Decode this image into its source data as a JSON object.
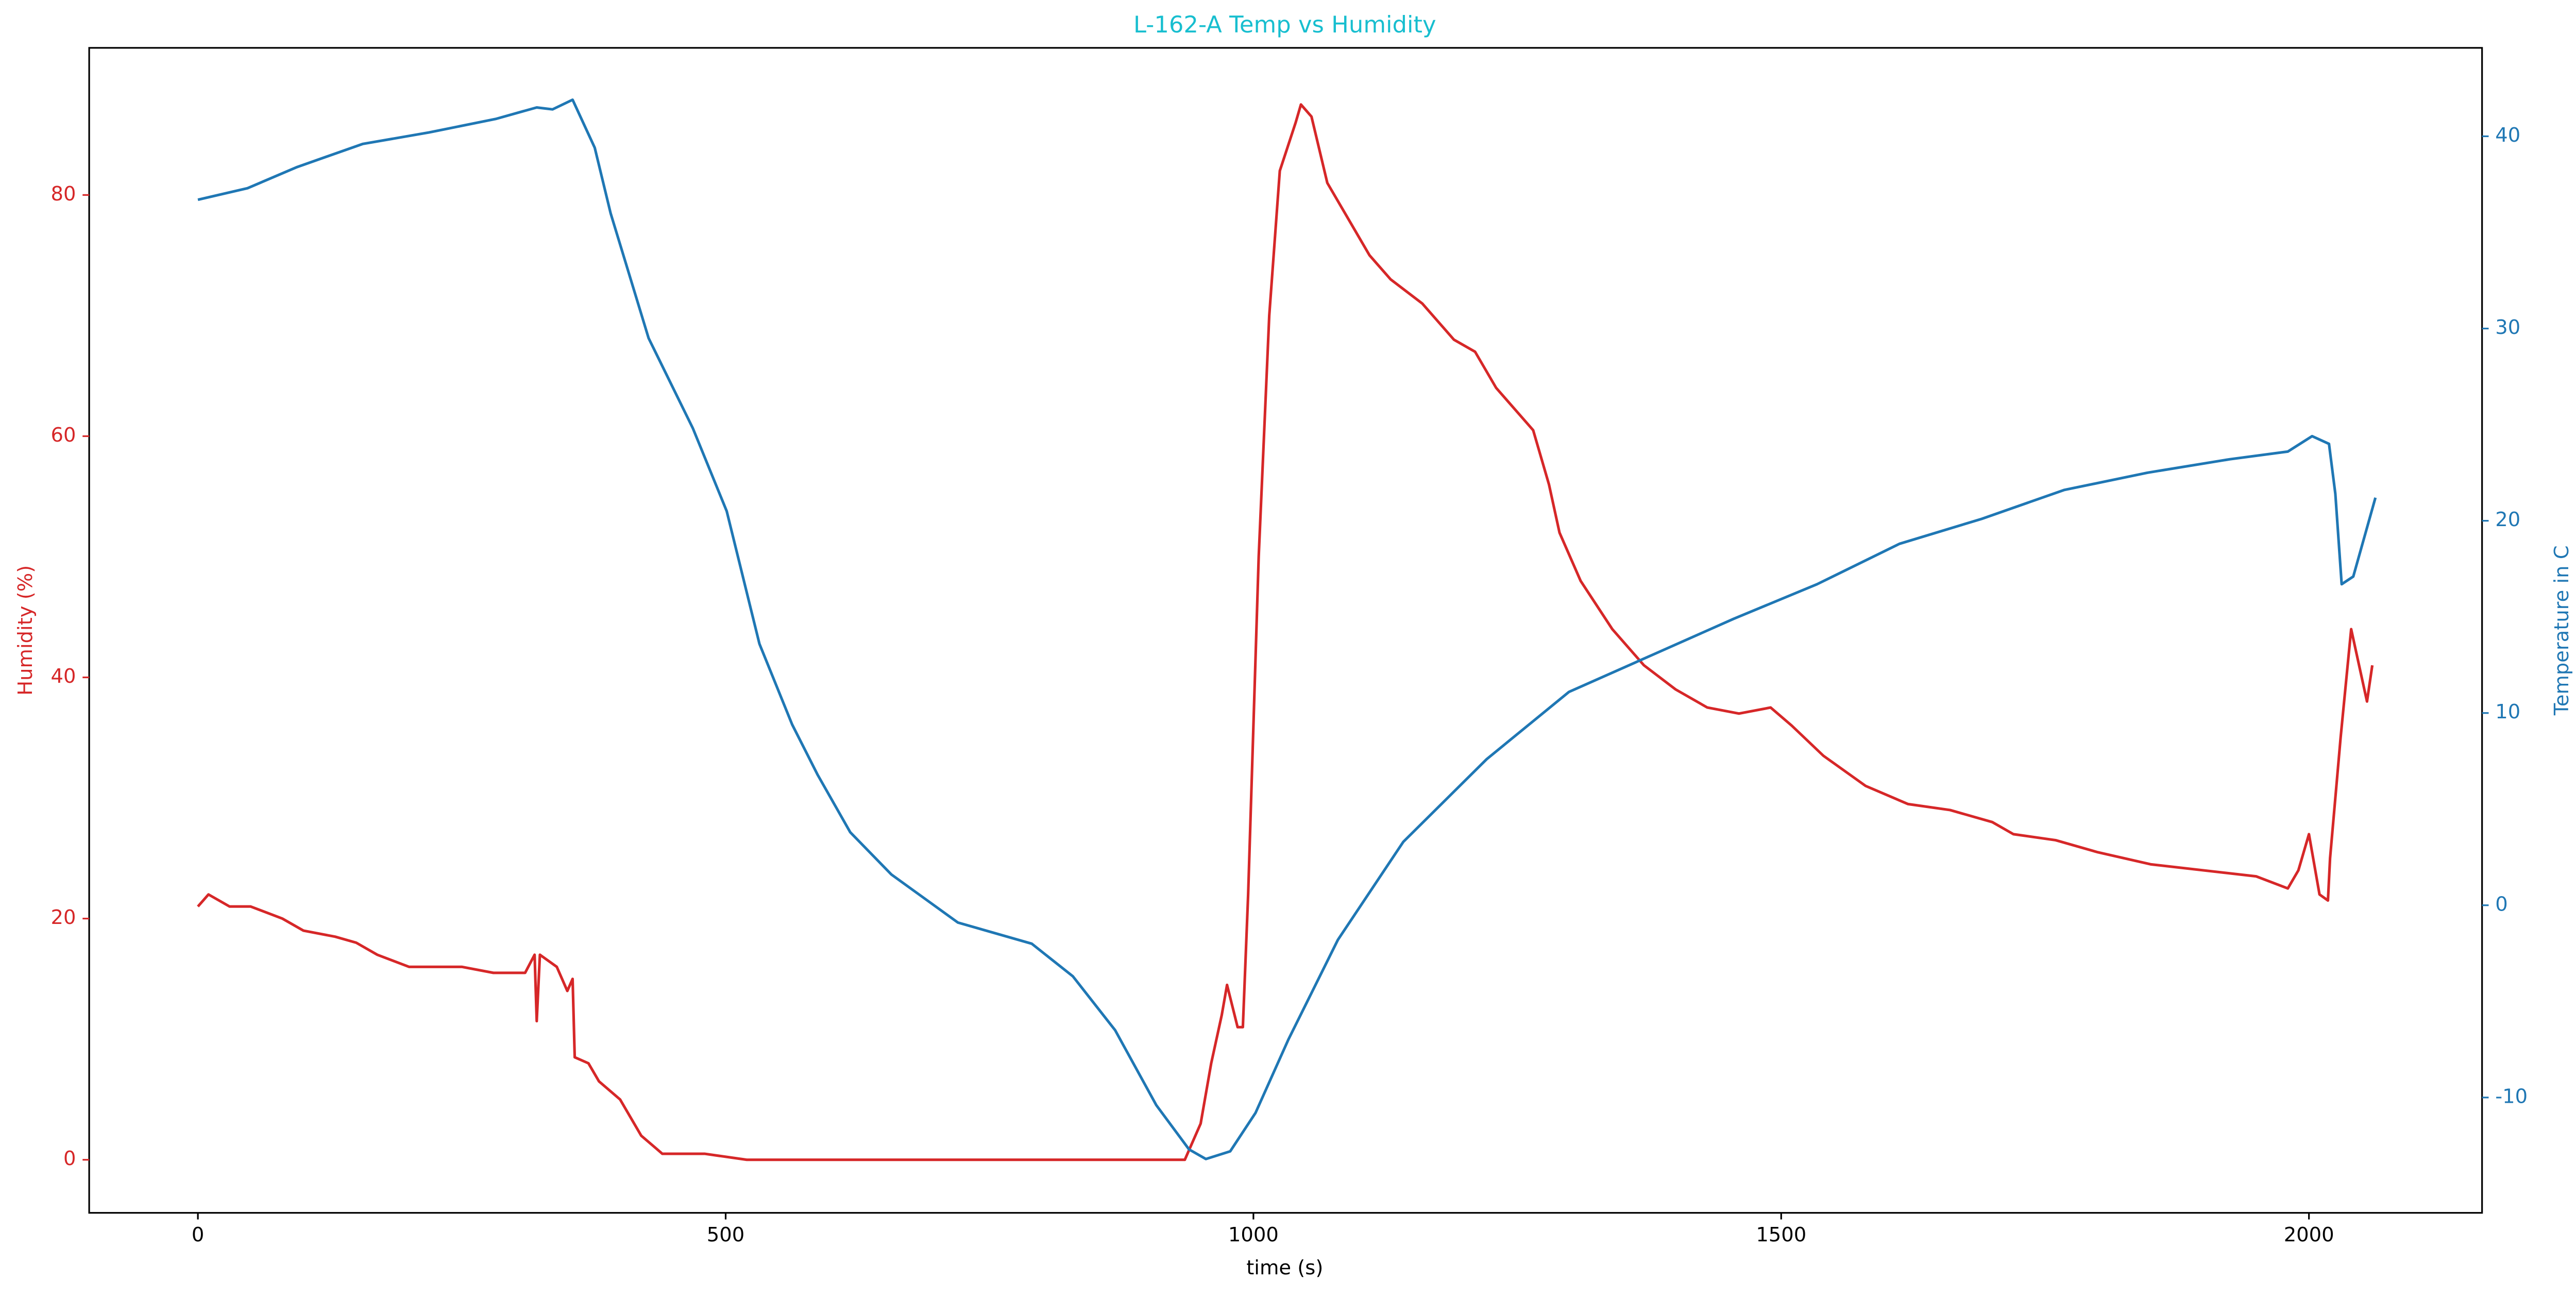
{
  "chart_data": {
    "type": "line",
    "title": "L-162-A Temp vs Humidity",
    "title_color": "#17becf",
    "xlabel": "time (s)",
    "ylabel": "Humidity (%)",
    "y2label": "Temperature in C",
    "xlim": [
      -103,
      2164
    ],
    "ylim": [
      -4.4,
      92.2
    ],
    "y2lim": [
      -16,
      44.6
    ],
    "xticks": [
      0,
      500,
      1000,
      1500,
      2000
    ],
    "yticks": [
      0,
      20,
      40,
      60,
      80
    ],
    "y2ticks": [
      -10,
      0,
      10,
      20,
      30,
      40
    ],
    "grid": false,
    "series": [
      {
        "color": "#d62728",
        "axis": "y",
        "x": [
          0,
          5,
          10,
          30,
          50,
          80,
          100,
          130,
          150,
          170,
          200,
          250,
          280,
          310,
          319,
          321,
          324,
          340,
          350,
          355,
          357,
          370,
          380,
          400,
          420,
          440,
          480,
          520,
          600,
          700,
          800,
          935,
          950,
          960,
          970,
          975,
          985,
          990,
          995,
          1005,
          1015,
          1025,
          1040,
          1045,
          1055,
          1070,
          1090,
          1110,
          1130,
          1160,
          1190,
          1210,
          1230,
          1250,
          1265,
          1280,
          1290,
          1310,
          1340,
          1370,
          1400,
          1430,
          1460,
          1490,
          1510,
          1540,
          1580,
          1620,
          1660,
          1700,
          1720,
          1760,
          1800,
          1850,
          1900,
          1950,
          1980,
          1990,
          2000,
          2010,
          2018,
          2020,
          2030,
          2040,
          2050,
          2055,
          2060
        ],
        "values": [
          21,
          21.5,
          22,
          21,
          21,
          20,
          19,
          18.5,
          18,
          17,
          16,
          16,
          15.5,
          15.5,
          17,
          11.5,
          17,
          16,
          14,
          15,
          8.5,
          8,
          6.5,
          5,
          2,
          0.5,
          0.5,
          0,
          0,
          0,
          0,
          0,
          3,
          8,
          12,
          14.5,
          11,
          11,
          22,
          50,
          70,
          82,
          86,
          87.5,
          86.5,
          81,
          78,
          75,
          73,
          71,
          68,
          67,
          64,
          62,
          60.5,
          56,
          52,
          48,
          44,
          41,
          39,
          37.5,
          37,
          37.5,
          36,
          33.5,
          31,
          29.5,
          29,
          28,
          27,
          26.5,
          25.5,
          24.5,
          24,
          23.5,
          22.5,
          24,
          27,
          22,
          21.5,
          25,
          35,
          44,
          40,
          38,
          41
        ]
      },
      {
        "color": "#1f77b4",
        "axis": "y2",
        "x": [
          0,
          47,
          94,
          156,
          219,
          282,
          321,
          336,
          355,
          376,
          391,
          427,
          469,
          501,
          532,
          563,
          587,
          618,
          657,
          720,
          790,
          829,
          869,
          908,
          939,
          955,
          978,
          1002,
          1033,
          1080,
          1142,
          1221,
          1299,
          1377,
          1455,
          1534,
          1612,
          1690,
          1768,
          1847,
          1925,
          1980,
          2003,
          2019,
          2025,
          2031,
          2042,
          2063
        ],
        "values": [
          36.7,
          37.3,
          38.4,
          39.6,
          40.2,
          40.9,
          41.5,
          41.4,
          41.9,
          39.4,
          36,
          29.5,
          24.8,
          20.5,
          13.6,
          9.4,
          6.8,
          3.8,
          1.6,
          -0.9,
          -2,
          -3.7,
          -6.5,
          -10.4,
          -12.7,
          -13.2,
          -12.8,
          -10.8,
          -7,
          -1.8,
          3.3,
          7.6,
          11.1,
          13,
          14.9,
          16.7,
          18.8,
          20.1,
          21.6,
          22.5,
          23.2,
          23.6,
          24.4,
          24,
          21.4,
          16.7,
          17.1,
          21.2
        ]
      }
    ]
  }
}
